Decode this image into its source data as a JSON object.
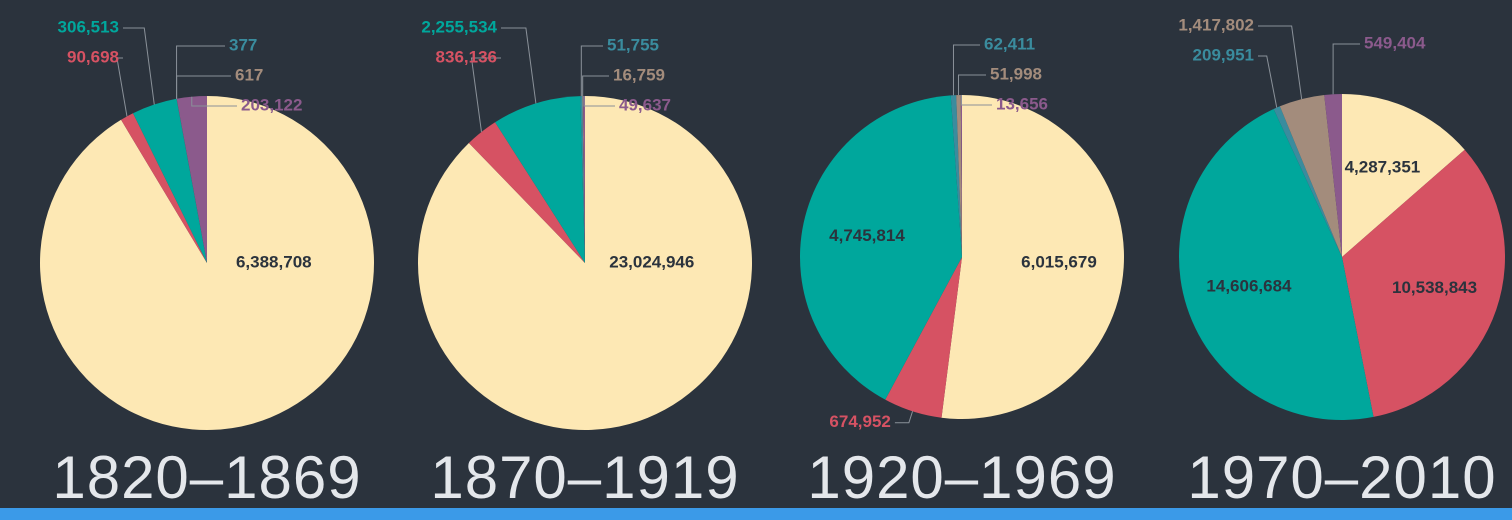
{
  "chart_data": [
    {
      "type": "pie",
      "title": "1820–1869",
      "values": [
        6388708,
        90698,
        306513,
        377,
        617,
        203122
      ],
      "value_labels": [
        "6,388,708",
        "90,698",
        "306,513",
        "377",
        "617",
        "203,122"
      ],
      "colors": [
        "#fde8b4",
        "#d65263",
        "#00a79c",
        "#3a8c9e",
        "#a38c7c",
        "#8b5a8c"
      ]
    },
    {
      "type": "pie",
      "title": "1870–1919",
      "values": [
        23024946,
        836136,
        2255534,
        51755,
        16759,
        49637
      ],
      "value_labels": [
        "23,024,946",
        "836,136",
        "2,255,534",
        "51,755",
        "16,759",
        "49,637"
      ],
      "colors": [
        "#fde8b4",
        "#d65263",
        "#00a79c",
        "#3a8c9e",
        "#a38c7c",
        "#8b5a8c"
      ]
    },
    {
      "type": "pie",
      "title": "1920–1969",
      "values": [
        6015679,
        674952,
        4745814,
        62411,
        51998,
        13656
      ],
      "value_labels": [
        "6,015,679",
        "674,952",
        "4,745,814",
        "62,411",
        "51,998",
        "13,656"
      ],
      "colors": [
        "#fde8b4",
        "#d65263",
        "#00a79c",
        "#3a8c9e",
        "#a38c7c",
        "#8b5a8c"
      ]
    },
    {
      "type": "pie",
      "title": "1970–2010",
      "values": [
        4287351,
        10538843,
        14606684,
        209951,
        1417802,
        549404
      ],
      "value_labels": [
        "4,287,351",
        "10,538,843",
        "14,606,684",
        "209,951",
        "1,417,802",
        "549,404"
      ],
      "colors": [
        "#fde8b4",
        "#d65263",
        "#00a79c",
        "#3a8c9e",
        "#a38c7c",
        "#8b5a8c"
      ]
    }
  ]
}
